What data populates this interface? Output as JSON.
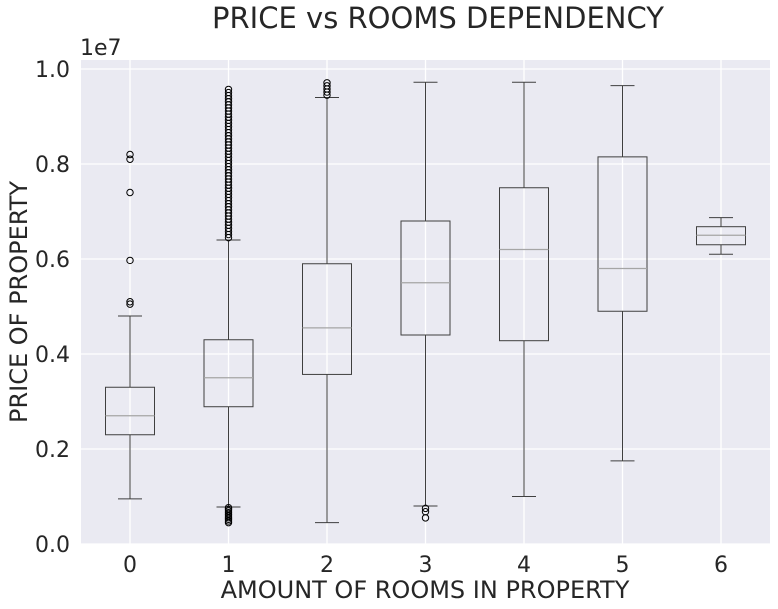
{
  "chart_data": {
    "type": "box",
    "title": "PRICE vs ROOMS DEPENDENCY",
    "xlabel": "AMOUNT OF ROOMS IN PROPERTY",
    "ylabel": "PRICE OF PROPERTY",
    "y_multiplier_label": "1e7",
    "ylim": [
      0.0,
      1.0
    ],
    "yticks": [
      "0.0",
      "0.2",
      "0.4",
      "0.6",
      "0.8",
      "1.0"
    ],
    "categories": [
      "0",
      "1",
      "2",
      "3",
      "4",
      "5",
      "6"
    ],
    "grid": true,
    "boxes": [
      {
        "category": "0",
        "whisker_low": 0.095,
        "q1": 0.23,
        "median": 0.27,
        "q3": 0.33,
        "whisker_high": 0.48,
        "outliers_high": [
          0.505,
          0.51,
          0.597,
          0.74,
          0.81,
          0.82
        ],
        "outliers_low": []
      },
      {
        "category": "1",
        "whisker_low": 0.078,
        "q1": 0.289,
        "median": 0.35,
        "q3": 0.43,
        "whisker_high": 0.64,
        "outliers_high_range": [
          0.645,
          0.962
        ],
        "outliers_low_range": [
          0.045,
          0.077
        ]
      },
      {
        "category": "2",
        "whisker_low": 0.045,
        "q1": 0.357,
        "median": 0.455,
        "q3": 0.59,
        "whisker_high": 0.94,
        "outliers_high_range": [
          0.945,
          0.975
        ],
        "outliers_low": []
      },
      {
        "category": "3",
        "whisker_low": 0.08,
        "q1": 0.44,
        "median": 0.55,
        "q3": 0.68,
        "whisker_high": 0.972,
        "outliers_high": [],
        "outliers_low": [
          0.075,
          0.068,
          0.055
        ]
      },
      {
        "category": "4",
        "whisker_low": 0.1,
        "q1": 0.428,
        "median": 0.62,
        "q3": 0.75,
        "whisker_high": 0.972,
        "outliers_high": [],
        "outliers_low": []
      },
      {
        "category": "5",
        "whisker_low": 0.175,
        "q1": 0.49,
        "median": 0.58,
        "q3": 0.815,
        "whisker_high": 0.965,
        "outliers_high": [],
        "outliers_low": []
      },
      {
        "category": "6",
        "whisker_low": 0.61,
        "q1": 0.63,
        "median": 0.65,
        "q3": 0.668,
        "whisker_high": 0.687,
        "outliers_high": [],
        "outliers_low": []
      }
    ],
    "colors": {
      "background": "#eaeaf2",
      "grid": "#ffffff",
      "box_edge": "#3f3f3f",
      "median": "#a5a5a5",
      "text": "#262626"
    }
  }
}
